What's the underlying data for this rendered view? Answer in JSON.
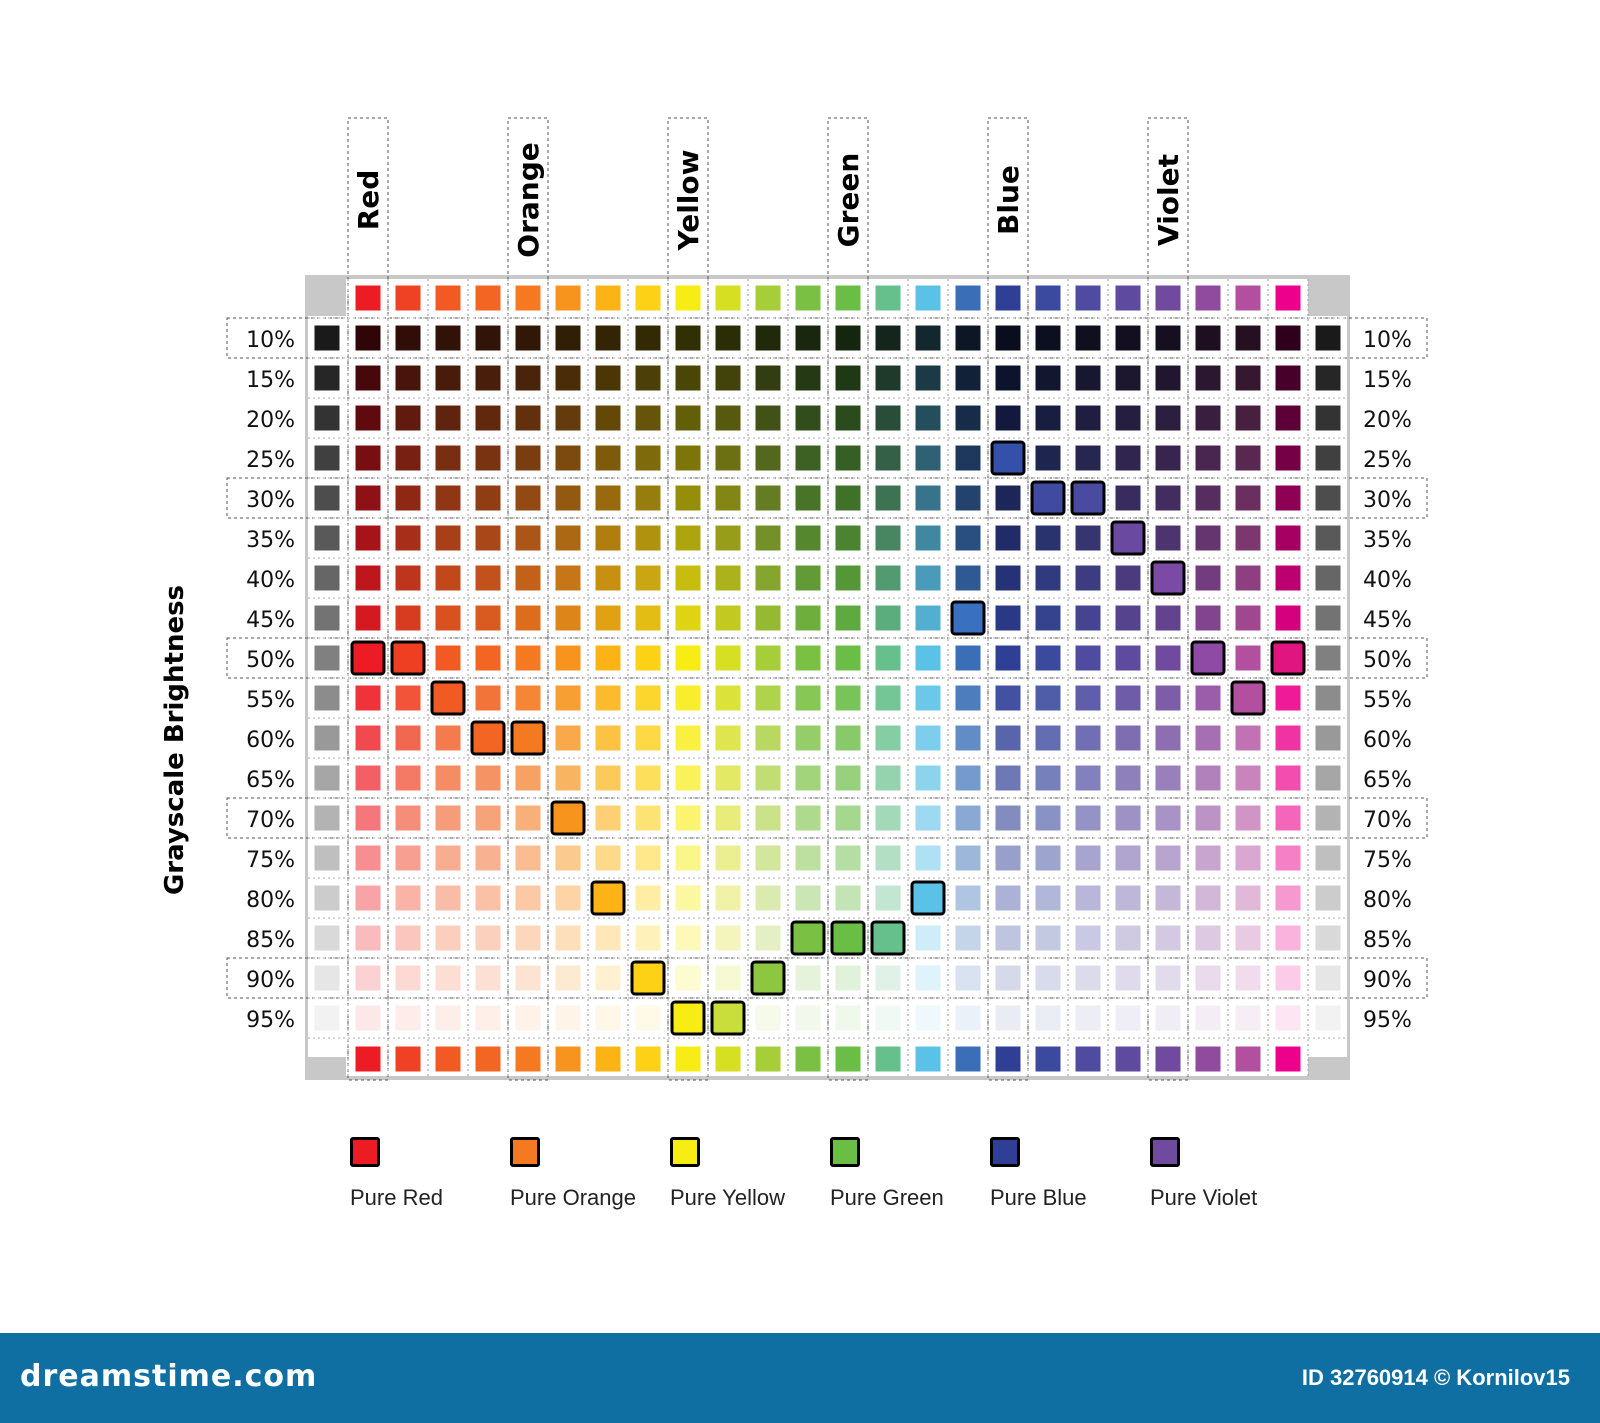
{
  "axis_title": "Grayscale Brightness",
  "hue_labels": [
    "Red",
    "Orange",
    "Yellow",
    "Green",
    "Blue",
    "Violet"
  ],
  "brightness_levels": [
    "10%",
    "15%",
    "20%",
    "25%",
    "30%",
    "35%",
    "40%",
    "45%",
    "50%",
    "55%",
    "60%",
    "65%",
    "70%",
    "75%",
    "80%",
    "85%",
    "90%",
    "95%"
  ],
  "hue_colors": [
    "#ed1c24",
    "#ef4123",
    "#f15a22",
    "#f26522",
    "#f47920",
    "#f7941d",
    "#fbb315",
    "#fcd116",
    "#f7ec13",
    "#d7df23",
    "#a6ce39",
    "#7ac143",
    "#6abd45",
    "#66c08b",
    "#5bc2e7",
    "#3a6fb7",
    "#2e3f95",
    "#3b4a9e",
    "#4e4ba0",
    "#5e4a9e",
    "#6f4a9e",
    "#904b9f",
    "#b24f9f",
    "#ec008c"
  ],
  "pure_markers": [
    {
      "row": 3,
      "col": 16,
      "color": "#3450a8"
    },
    {
      "row": 4,
      "col": 17,
      "color": "#3f4aa0"
    },
    {
      "row": 4,
      "col": 18,
      "color": "#4a4aa0"
    },
    {
      "row": 5,
      "col": 19,
      "color": "#6a4aa0"
    },
    {
      "row": 6,
      "col": 20,
      "color": "#7a4aa5"
    },
    {
      "row": 7,
      "col": 15,
      "color": "#3a70c0"
    },
    {
      "row": 8,
      "col": 0,
      "color": "#ed1c24"
    },
    {
      "row": 8,
      "col": 1,
      "color": "#ef3f23"
    },
    {
      "row": 8,
      "col": 21,
      "color": "#8e4aa5"
    },
    {
      "row": 8,
      "col": 23,
      "color": "#e0157f"
    },
    {
      "row": 9,
      "col": 2,
      "color": "#f15a22"
    },
    {
      "row": 9,
      "col": 22,
      "color": "#b24f9f"
    },
    {
      "row": 10,
      "col": 3,
      "color": "#f26522"
    },
    {
      "row": 10,
      "col": 4,
      "color": "#f47920"
    },
    {
      "row": 12,
      "col": 5,
      "color": "#f7941d"
    },
    {
      "row": 14,
      "col": 6,
      "color": "#fbb315"
    },
    {
      "row": 14,
      "col": 14,
      "color": "#5bc2e7"
    },
    {
      "row": 15,
      "col": 11,
      "color": "#7ac143"
    },
    {
      "row": 15,
      "col": 12,
      "color": "#6abd45"
    },
    {
      "row": 15,
      "col": 13,
      "color": "#66c08b"
    },
    {
      "row": 16,
      "col": 7,
      "color": "#fcd116"
    },
    {
      "row": 16,
      "col": 10,
      "color": "#8dc63f"
    },
    {
      "row": 17,
      "col": 8,
      "color": "#f7ec13"
    },
    {
      "row": 17,
      "col": 9,
      "color": "#c9de3a"
    }
  ],
  "legend": [
    {
      "label": "Pure Red",
      "color": "#ed1c24"
    },
    {
      "label": "Pure Orange",
      "color": "#f47920"
    },
    {
      "label": "Pure Yellow",
      "color": "#f7ec13"
    },
    {
      "label": "Pure Green",
      "color": "#6abd45"
    },
    {
      "label": "Pure Blue",
      "color": "#2e3f95"
    },
    {
      "label": "Pure Violet",
      "color": "#6f4a9e"
    }
  ],
  "footer": {
    "logo": "dreamstime.com",
    "credit": "ID 32760914 © Kornilov15"
  }
}
